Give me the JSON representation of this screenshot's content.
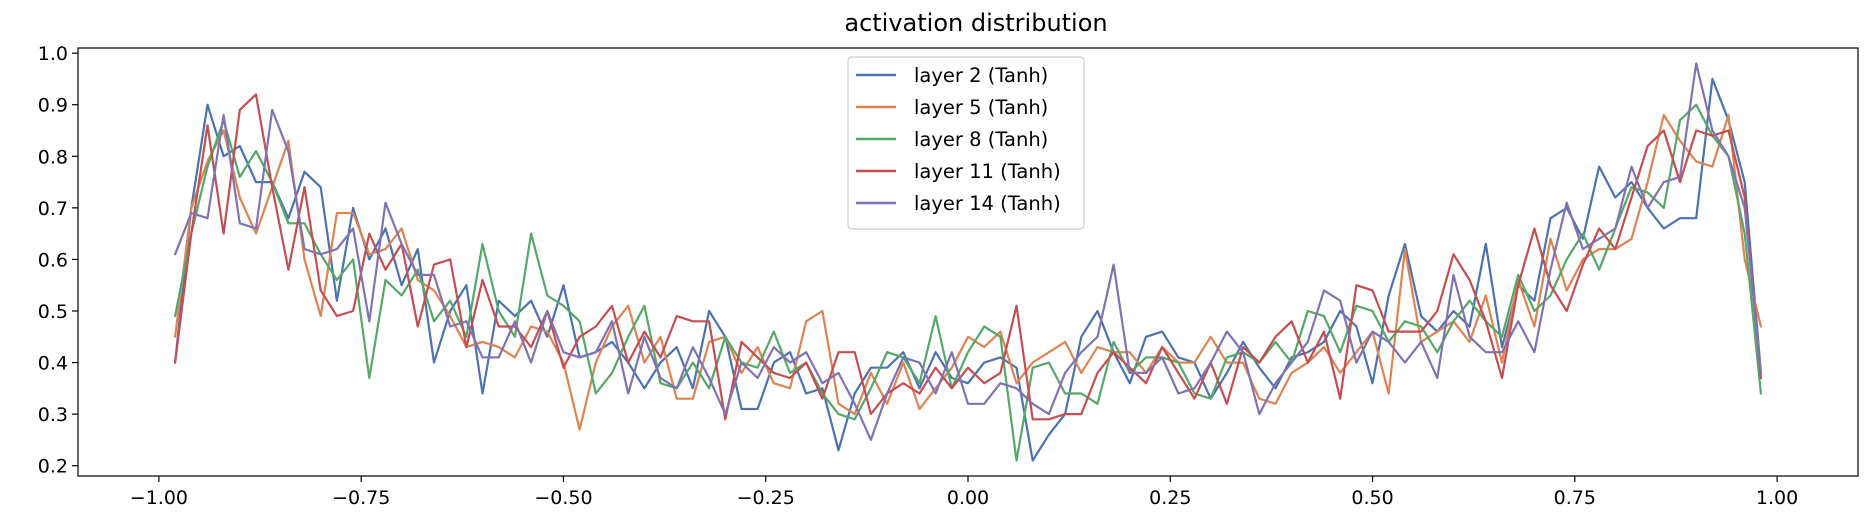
{
  "chart_data": {
    "type": "line",
    "title": "activation distribution",
    "xlabel": "",
    "ylabel": "",
    "xlim": [
      -1.1,
      1.1
    ],
    "ylim": [
      0.18,
      1.01
    ],
    "x_ticks": [
      -1.0,
      -0.75,
      -0.5,
      -0.25,
      0.0,
      0.25,
      0.5,
      0.75,
      1.0
    ],
    "x_tick_labels": [
      "−1.00",
      "−0.75",
      "−0.50",
      "−0.25",
      "0.00",
      "0.25",
      "0.50",
      "0.75",
      "1.00"
    ],
    "y_ticks": [
      0.2,
      0.3,
      0.4,
      0.5,
      0.6,
      0.7,
      0.8,
      0.9,
      1.0
    ],
    "y_tick_labels": [
      "0.2",
      "0.3",
      "0.4",
      "0.5",
      "0.6",
      "0.7",
      "0.8",
      "0.9",
      "1.0"
    ],
    "grid": false,
    "legend_position": "upper center",
    "x": [
      -0.98,
      -0.96,
      -0.94,
      -0.92,
      -0.9,
      -0.88,
      -0.86,
      -0.84,
      -0.82,
      -0.8,
      -0.78,
      -0.76,
      -0.74,
      -0.72,
      -0.7,
      -0.68,
      -0.66,
      -0.64,
      -0.62,
      -0.6,
      -0.58,
      -0.56,
      -0.54,
      -0.52,
      -0.5,
      -0.48,
      -0.46,
      -0.44,
      -0.42,
      -0.4,
      -0.38,
      -0.36,
      -0.34,
      -0.32,
      -0.3,
      -0.28,
      -0.26,
      -0.24,
      -0.22,
      -0.2,
      -0.18,
      -0.16,
      -0.14,
      -0.12,
      -0.1,
      -0.08,
      -0.06,
      -0.04,
      -0.02,
      0.0,
      0.02,
      0.04,
      0.06,
      0.08,
      0.1,
      0.12,
      0.14,
      0.16,
      0.18,
      0.2,
      0.22,
      0.24,
      0.26,
      0.28,
      0.3,
      0.32,
      0.34,
      0.36,
      0.38,
      0.4,
      0.42,
      0.44,
      0.46,
      0.48,
      0.5,
      0.52,
      0.54,
      0.56,
      0.58,
      0.6,
      0.62,
      0.64,
      0.66,
      0.68,
      0.7,
      0.72,
      0.74,
      0.76,
      0.78,
      0.8,
      0.82,
      0.84,
      0.86,
      0.88,
      0.9,
      0.92,
      0.94,
      0.96,
      0.98
    ],
    "series": [
      {
        "name": "layer 2 (Tanh)",
        "color": "#4c72b0",
        "values": [
          0.4,
          0.7,
          0.9,
          0.8,
          0.82,
          0.75,
          0.75,
          0.68,
          0.77,
          0.74,
          0.52,
          0.7,
          0.6,
          0.66,
          0.55,
          0.62,
          0.4,
          0.5,
          0.55,
          0.34,
          0.52,
          0.49,
          0.52,
          0.45,
          0.55,
          0.41,
          0.42,
          0.44,
          0.4,
          0.35,
          0.4,
          0.43,
          0.35,
          0.5,
          0.45,
          0.31,
          0.31,
          0.4,
          0.42,
          0.34,
          0.35,
          0.23,
          0.34,
          0.39,
          0.39,
          0.42,
          0.35,
          0.42,
          0.37,
          0.36,
          0.4,
          0.41,
          0.39,
          0.21,
          0.26,
          0.3,
          0.45,
          0.5,
          0.42,
          0.36,
          0.45,
          0.46,
          0.41,
          0.4,
          0.33,
          0.38,
          0.44,
          0.39,
          0.35,
          0.41,
          0.42,
          0.44,
          0.5,
          0.47,
          0.36,
          0.53,
          0.63,
          0.49,
          0.46,
          0.5,
          0.47,
          0.63,
          0.43,
          0.55,
          0.52,
          0.68,
          0.7,
          0.64,
          0.78,
          0.72,
          0.75,
          0.7,
          0.66,
          0.68,
          0.68,
          0.95,
          0.87,
          0.75,
          0.38
        ]
      },
      {
        "name": "layer 5 (Tanh)",
        "color": "#dd8452",
        "values": [
          0.45,
          0.7,
          0.79,
          0.85,
          0.72,
          0.65,
          0.74,
          0.83,
          0.6,
          0.49,
          0.69,
          0.69,
          0.61,
          0.62,
          0.66,
          0.56,
          0.54,
          0.49,
          0.43,
          0.44,
          0.43,
          0.41,
          0.47,
          0.46,
          0.4,
          0.27,
          0.4,
          0.47,
          0.51,
          0.4,
          0.45,
          0.33,
          0.33,
          0.44,
          0.45,
          0.38,
          0.43,
          0.36,
          0.35,
          0.48,
          0.5,
          0.32,
          0.3,
          0.38,
          0.32,
          0.4,
          0.31,
          0.35,
          0.39,
          0.45,
          0.43,
          0.46,
          0.36,
          0.4,
          0.42,
          0.44,
          0.38,
          0.43,
          0.42,
          0.42,
          0.38,
          0.43,
          0.4,
          0.4,
          0.45,
          0.4,
          0.4,
          0.33,
          0.32,
          0.38,
          0.4,
          0.43,
          0.38,
          0.42,
          0.46,
          0.34,
          0.62,
          0.44,
          0.46,
          0.48,
          0.44,
          0.53,
          0.4,
          0.56,
          0.47,
          0.64,
          0.54,
          0.6,
          0.62,
          0.62,
          0.64,
          0.75,
          0.88,
          0.83,
          0.79,
          0.78,
          0.88,
          0.6,
          0.47
        ]
      },
      {
        "name": "layer 8 (Tanh)",
        "color": "#55a868",
        "values": [
          0.49,
          0.65,
          0.78,
          0.87,
          0.76,
          0.81,
          0.75,
          0.67,
          0.67,
          0.61,
          0.56,
          0.6,
          0.37,
          0.56,
          0.53,
          0.58,
          0.48,
          0.52,
          0.45,
          0.63,
          0.5,
          0.45,
          0.65,
          0.53,
          0.51,
          0.48,
          0.34,
          0.38,
          0.45,
          0.51,
          0.36,
          0.35,
          0.4,
          0.35,
          0.45,
          0.4,
          0.39,
          0.46,
          0.38,
          0.4,
          0.34,
          0.3,
          0.29,
          0.35,
          0.42,
          0.41,
          0.36,
          0.49,
          0.35,
          0.42,
          0.47,
          0.45,
          0.21,
          0.39,
          0.4,
          0.34,
          0.34,
          0.32,
          0.44,
          0.38,
          0.41,
          0.41,
          0.4,
          0.34,
          0.33,
          0.41,
          0.42,
          0.4,
          0.44,
          0.4,
          0.5,
          0.49,
          0.42,
          0.51,
          0.5,
          0.44,
          0.48,
          0.47,
          0.42,
          0.48,
          0.52,
          0.48,
          0.45,
          0.57,
          0.5,
          0.53,
          0.6,
          0.65,
          0.58,
          0.66,
          0.74,
          0.73,
          0.7,
          0.87,
          0.9,
          0.84,
          0.8,
          0.65,
          0.34
        ]
      },
      {
        "name": "layer 11 (Tanh)",
        "color": "#c44e52",
        "values": [
          0.4,
          0.65,
          0.86,
          0.65,
          0.89,
          0.92,
          0.74,
          0.58,
          0.74,
          0.54,
          0.49,
          0.5,
          0.65,
          0.58,
          0.63,
          0.47,
          0.59,
          0.6,
          0.43,
          0.56,
          0.47,
          0.47,
          0.43,
          0.5,
          0.39,
          0.45,
          0.47,
          0.51,
          0.4,
          0.46,
          0.41,
          0.49,
          0.48,
          0.48,
          0.29,
          0.44,
          0.41,
          0.38,
          0.37,
          0.4,
          0.33,
          0.42,
          0.42,
          0.3,
          0.34,
          0.36,
          0.34,
          0.39,
          0.35,
          0.39,
          0.36,
          0.38,
          0.51,
          0.29,
          0.29,
          0.3,
          0.3,
          0.38,
          0.42,
          0.39,
          0.36,
          0.43,
          0.38,
          0.33,
          0.4,
          0.32,
          0.43,
          0.4,
          0.45,
          0.48,
          0.4,
          0.46,
          0.33,
          0.55,
          0.54,
          0.46,
          0.46,
          0.46,
          0.5,
          0.61,
          0.56,
          0.48,
          0.37,
          0.55,
          0.66,
          0.55,
          0.5,
          0.59,
          0.66,
          0.62,
          0.72,
          0.82,
          0.85,
          0.75,
          0.85,
          0.84,
          0.85,
          0.72,
          0.37
        ]
      },
      {
        "name": "layer 14 (Tanh)",
        "color": "#8172b2",
        "values": [
          0.61,
          0.69,
          0.68,
          0.88,
          0.67,
          0.66,
          0.89,
          0.81,
          0.62,
          0.61,
          0.62,
          0.66,
          0.48,
          0.71,
          0.63,
          0.57,
          0.57,
          0.47,
          0.48,
          0.41,
          0.41,
          0.48,
          0.4,
          0.5,
          0.42,
          0.41,
          0.42,
          0.48,
          0.34,
          0.45,
          0.37,
          0.35,
          0.43,
          0.37,
          0.3,
          0.4,
          0.37,
          0.43,
          0.4,
          0.42,
          0.36,
          0.38,
          0.32,
          0.25,
          0.34,
          0.41,
          0.4,
          0.34,
          0.42,
          0.32,
          0.32,
          0.36,
          0.35,
          0.32,
          0.3,
          0.38,
          0.42,
          0.45,
          0.59,
          0.38,
          0.38,
          0.41,
          0.34,
          0.35,
          0.4,
          0.46,
          0.42,
          0.3,
          0.36,
          0.4,
          0.44,
          0.54,
          0.52,
          0.4,
          0.46,
          0.44,
          0.4,
          0.44,
          0.37,
          0.57,
          0.45,
          0.42,
          0.42,
          0.48,
          0.42,
          0.58,
          0.71,
          0.62,
          0.64,
          0.66,
          0.78,
          0.7,
          0.75,
          0.76,
          0.98,
          0.85,
          0.8,
          0.7,
          0.38
        ]
      }
    ]
  }
}
